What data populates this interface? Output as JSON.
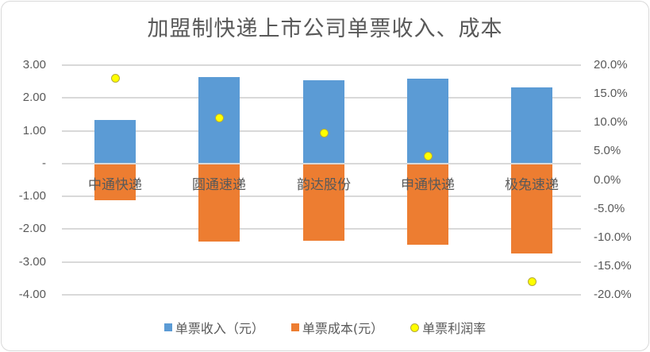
{
  "chart_data": {
    "type": "bar",
    "title": "加盟制快递上市公司单票收入、成本",
    "categories": [
      "中通快递",
      "圆通速递",
      "韵达股份",
      "申通快递",
      "极兔速递"
    ],
    "series": [
      {
        "name": "单票收入（元）",
        "type": "bar",
        "axis": "left",
        "color": "#5b9bd5",
        "values": [
          1.33,
          2.64,
          2.54,
          2.59,
          2.32
        ]
      },
      {
        "name": "单票成本(元）",
        "type": "bar",
        "axis": "left",
        "color": "#ed7d31",
        "values": [
          -1.11,
          -2.37,
          -2.35,
          -2.47,
          -2.74
        ]
      },
      {
        "name": "单票利润率",
        "type": "scatter",
        "axis": "right",
        "color": "#ffff00",
        "values": [
          17.8,
          10.9,
          8.2,
          4.2,
          -17.7
        ]
      }
    ],
    "left_axis": {
      "ticks": [
        "3.00",
        "2.00",
        "1.00",
        "-",
        "-1.00",
        "-2.00",
        "-3.00",
        "-4.00"
      ],
      "ylim": [
        -4,
        3
      ]
    },
    "right_axis": {
      "ticks": [
        "20.0%",
        "15.0%",
        "10.0%",
        "5.0%",
        "0.0%",
        "-5.0%",
        "-10.0%",
        "-15.0%",
        "-20.0%"
      ],
      "ylim": [
        -20,
        20
      ]
    },
    "grid": true,
    "legend_position": "bottom"
  },
  "title": "加盟制快递上市公司单票收入、成本",
  "legend": [
    "单票收入（元）",
    "单票成本(元）",
    "单票利润率"
  ]
}
